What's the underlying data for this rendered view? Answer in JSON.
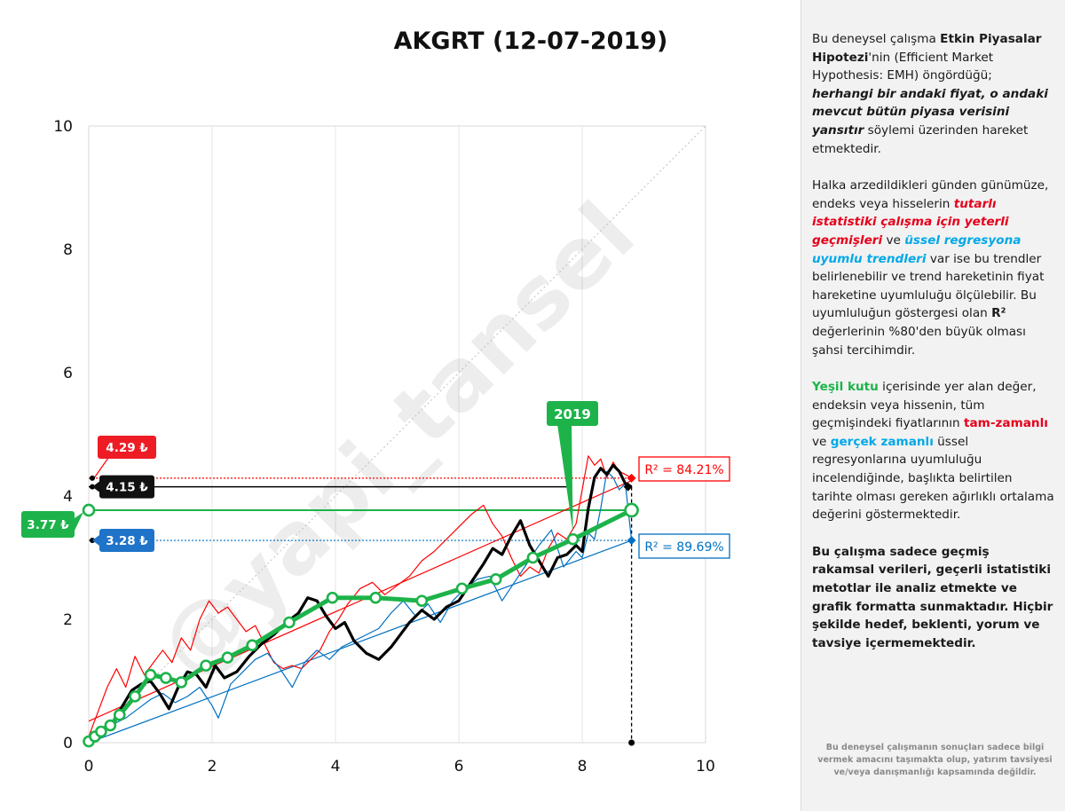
{
  "chart_data": {
    "type": "line",
    "title": "AKGRT (12-07-2019)",
    "xlim": [
      0,
      10
    ],
    "ylim": [
      0,
      10
    ],
    "x_ticks": [
      "0",
      "2",
      "4",
      "6",
      "8",
      "10"
    ],
    "y_ticks": [
      "0",
      "2",
      "4",
      "6",
      "8",
      "10"
    ],
    "grid": "vertical",
    "watermark": "@yapi_tansel",
    "labels": {
      "red_price": "4.29 ₺",
      "black_price": "4.15 ₺",
      "green_price": "3.77 ₺",
      "blue_price": "3.28 ₺",
      "red_r2": "R² = 84.21%",
      "blue_r2": "R² = 89.69%",
      "year_box": "2019"
    },
    "levels": {
      "red": 4.29,
      "black": 4.15,
      "green": 3.77,
      "blue": 3.28
    },
    "current_x": 8.8,
    "colors": {
      "red": "#ff0000",
      "black": "#000000",
      "green": "#1db34a",
      "blue": "#0070c0",
      "grid": "#e6e6e6"
    },
    "series": [
      {
        "key": "black",
        "x": [
          0,
          0.2,
          0.4,
          0.55,
          0.7,
          0.85,
          1.0,
          1.15,
          1.3,
          1.45,
          1.6,
          1.75,
          1.9,
          2.05,
          2.2,
          2.4,
          2.6,
          2.8,
          3.0,
          3.2,
          3.4,
          3.55,
          3.7,
          3.85,
          4.0,
          4.15,
          4.3,
          4.5,
          4.7,
          4.9,
          5.05,
          5.2,
          5.4,
          5.6,
          5.8,
          6.0,
          6.2,
          6.4,
          6.55,
          6.7,
          6.85,
          7.0,
          7.15,
          7.3,
          7.45,
          7.6,
          7.75,
          7.9,
          8.0,
          8.1,
          8.2,
          8.3,
          8.4,
          8.5,
          8.6,
          8.7,
          8.8
        ],
        "y": [
          0.05,
          0.2,
          0.35,
          0.6,
          0.85,
          0.95,
          1.0,
          0.8,
          0.55,
          0.9,
          1.15,
          1.1,
          0.9,
          1.25,
          1.05,
          1.15,
          1.4,
          1.6,
          1.75,
          1.95,
          2.1,
          2.35,
          2.3,
          2.05,
          1.85,
          1.95,
          1.65,
          1.45,
          1.35,
          1.55,
          1.75,
          1.95,
          2.15,
          2.0,
          2.2,
          2.3,
          2.6,
          2.9,
          3.15,
          3.05,
          3.35,
          3.6,
          3.2,
          2.95,
          2.7,
          3.0,
          3.05,
          3.2,
          3.1,
          3.8,
          4.3,
          4.45,
          4.35,
          4.5,
          4.4,
          4.2,
          4.15
        ]
      },
      {
        "key": "red",
        "x": [
          0,
          0.15,
          0.3,
          0.45,
          0.6,
          0.75,
          0.9,
          1.05,
          1.2,
          1.35,
          1.5,
          1.65,
          1.8,
          1.95,
          2.1,
          2.25,
          2.4,
          2.55,
          2.7,
          2.85,
          3.0,
          3.15,
          3.3,
          3.45,
          3.6,
          3.75,
          3.9,
          4.05,
          4.2,
          4.4,
          4.6,
          4.8,
          5.0,
          5.2,
          5.4,
          5.6,
          5.8,
          6.0,
          6.2,
          6.4,
          6.55,
          6.7,
          6.85,
          7.0,
          7.15,
          7.3,
          7.45,
          7.6,
          7.75,
          7.9,
          8.0,
          8.1,
          8.2,
          8.3,
          8.4,
          8.5,
          8.6,
          8.7,
          8.8
        ],
        "y": [
          0.1,
          0.5,
          0.9,
          1.2,
          0.9,
          1.4,
          1.1,
          1.3,
          1.5,
          1.3,
          1.7,
          1.5,
          2.0,
          2.3,
          2.1,
          2.2,
          2.0,
          1.8,
          1.9,
          1.6,
          1.3,
          1.2,
          1.25,
          1.2,
          1.35,
          1.5,
          1.8,
          2.0,
          2.25,
          2.5,
          2.6,
          2.4,
          2.55,
          2.7,
          2.95,
          3.1,
          3.3,
          3.5,
          3.7,
          3.85,
          3.55,
          3.35,
          3.0,
          2.7,
          2.85,
          2.75,
          3.15,
          3.4,
          3.3,
          3.55,
          4.1,
          4.65,
          4.5,
          4.6,
          4.3,
          4.55,
          4.4,
          4.35,
          4.29
        ]
      },
      {
        "key": "blue",
        "x": [
          0,
          0.2,
          0.4,
          0.6,
          0.8,
          1.0,
          1.2,
          1.4,
          1.6,
          1.8,
          2.0,
          2.1,
          2.3,
          2.5,
          2.7,
          2.9,
          3.1,
          3.3,
          3.5,
          3.7,
          3.9,
          4.1,
          4.3,
          4.5,
          4.7,
          4.9,
          5.1,
          5.3,
          5.5,
          5.7,
          5.9,
          6.1,
          6.3,
          6.5,
          6.7,
          6.9,
          7.1,
          7.3,
          7.5,
          7.7,
          7.9,
          8.0,
          8.1,
          8.2,
          8.3,
          8.4,
          8.5,
          8.6,
          8.7,
          8.8
        ],
        "y": [
          0.05,
          0.15,
          0.3,
          0.4,
          0.55,
          0.7,
          0.8,
          0.65,
          0.75,
          0.9,
          0.6,
          0.4,
          0.95,
          1.15,
          1.35,
          1.45,
          1.2,
          0.9,
          1.3,
          1.5,
          1.35,
          1.55,
          1.65,
          1.75,
          1.85,
          2.1,
          2.3,
          2.05,
          2.25,
          1.95,
          2.3,
          2.5,
          2.65,
          2.7,
          2.3,
          2.6,
          2.9,
          3.2,
          3.45,
          2.85,
          3.1,
          3.0,
          3.4,
          3.3,
          3.8,
          4.4,
          4.3,
          4.1,
          4.2,
          3.28
        ]
      }
    ],
    "green_points": {
      "x": [
        0,
        0.1,
        0.2,
        0.35,
        0.5,
        0.75,
        1.0,
        1.25,
        1.5,
        1.9,
        2.25,
        2.65,
        3.25,
        3.95,
        4.65,
        5.4,
        6.05,
        6.6,
        7.2,
        7.85,
        8.8
      ],
      "y": [
        0.02,
        0.1,
        0.18,
        0.28,
        0.45,
        0.75,
        1.1,
        1.05,
        0.98,
        1.25,
        1.38,
        1.58,
        1.95,
        2.35,
        2.35,
        2.3,
        2.5,
        2.65,
        3.0,
        3.3,
        3.77
      ]
    },
    "trendlines": {
      "red": {
        "x": [
          0,
          8.8
        ],
        "y": [
          0.35,
          4.25
        ]
      },
      "blue": {
        "x": [
          0,
          8.8
        ],
        "y": [
          0.0,
          3.28
        ]
      },
      "diagonal": {
        "x": [
          0,
          10
        ],
        "y": [
          0,
          10
        ]
      }
    }
  },
  "sidebar": {
    "p1_a": "Bu deneysel çalışma ",
    "p1_b": "Etkin Piyasalar Hipotezi",
    "p1_c": "'nin (Efficient Market Hypothesis: EMH) öngördüğü; ",
    "p1_d": "herhangi bir andaki fiyat, o andaki mevcut bütün piyasa verisini yansıtır",
    "p1_e": "  söylemi üzerinden hareket etmektedir.",
    "p2_a": "Halka arzedildikleri günden günümüze, endeks veya hisselerin ",
    "p2_b": "tutarlı istatistiki çalışma için yeterli geçmişleri",
    "p2_c": " ve ",
    "p2_d": "üssel regresyona uyumlu trendleri",
    "p2_e": " var ise bu trendler belirlenebilir ve trend hareketinin fiyat hareketine uyumluluğu ölçülebilir. Bu uyumluluğun göstergesi olan ",
    "p2_f": "R²",
    "p2_g": " değerlerinin %80'den büyük olması şahsi tercihimdir.",
    "p3_a": "Yeşil kutu",
    "p3_b": " içerisinde yer alan değer, endeksin veya hissenin, tüm geçmişindeki fiyatlarının ",
    "p3_c": "tam-zamanlı",
    "p3_d": " ve ",
    "p3_e": "gerçek zamanlı",
    "p3_f": " üssel regresyonlarına uyumluluğu incelendiğinde, başlıkta belirtilen tarihte olması gereken ağırlıklı ortalama değerini göstermektedir.",
    "p4": "Bu çalışma sadece geçmiş rakamsal verileri, geçerli istatistiki metotlar ile  analiz etmekte ve grafik formatta sunmaktadır. Hiçbir şekilde hedef, beklenti, yorum ve tavsiye içermemektedir.",
    "disclaimer": "Bu deneysel çalışmanın sonuçları sadece bilgi vermek amacını taşımakta olup, yatırım tavsiyesi ve/veya danışmanlığı kapsamında değildir."
  }
}
